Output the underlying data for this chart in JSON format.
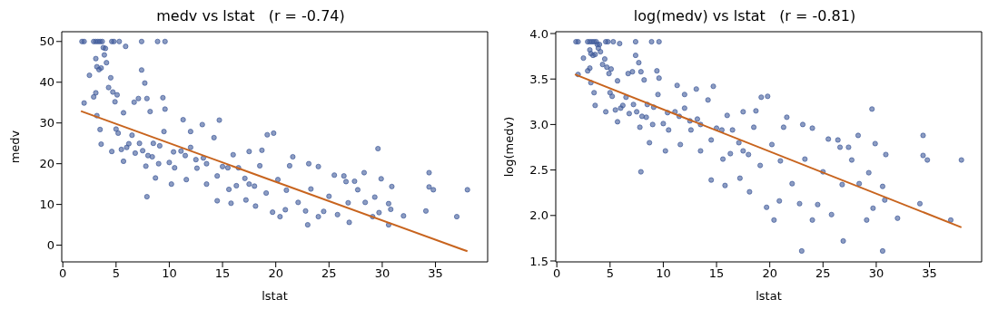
{
  "chart_data": [
    {
      "type": "scatter",
      "title": "medv vs lstat   (r = -0.74)",
      "xlabel": "lstat",
      "ylabel": "medv",
      "xlim": [
        -0.1,
        39.9
      ],
      "ylim": [
        -4.1,
        52.4
      ],
      "xticks": [
        0,
        5,
        10,
        15,
        20,
        25,
        30,
        35
      ],
      "yticks": [
        0,
        10,
        20,
        30,
        40,
        50
      ],
      "grid": false,
      "series": [
        {
          "marker": "circle",
          "color": "#3f5a9a",
          "x": [
            1.8,
            2,
            2.9,
            3.1,
            3.3,
            3.5,
            3.7,
            4.6,
            4.8,
            5.3,
            7.4,
            8.9,
            9.6,
            3.1,
            3.2,
            3.4,
            3.6,
            3.8,
            4,
            3.9,
            4.1,
            2.5,
            4.5,
            5.9,
            7.4,
            7.7,
            4.3,
            3.1,
            3.2,
            2.9,
            2,
            3.5,
            3.6,
            4.7,
            5.1,
            4.9,
            5.7,
            6.7,
            7.1,
            7.9,
            9.4,
            9.6,
            8.2,
            5,
            5.2,
            4.6,
            5.5,
            5.7,
            6.2,
            6.8,
            7.2,
            7.5,
            7.9,
            7.8,
            8.4,
            8.7,
            9.1,
            9.5,
            10.2,
            10,
            10.4,
            11.1,
            11.3,
            12,
            11.6,
            12.6,
            13.1,
            13.2,
            13.5,
            14.2,
            14.5,
            14.7,
            15,
            15.6,
            16,
            15.8,
            16.3,
            17.1,
            17.2,
            17.5,
            18.1,
            18.5,
            18.7,
            19.1,
            19.2,
            19.8,
            19.7,
            20.2,
            20.4,
            20.9,
            21,
            21.3,
            21.6,
            22.1,
            22.8,
            23,
            23.1,
            23.3,
            24,
            24,
            24.5,
            25,
            25.5,
            25.8,
            26.4,
            26.6,
            26.8,
            26.9,
            27.4,
            27.7,
            28.3,
            28.4,
            29.1,
            29.3,
            29.6,
            29.7,
            29.9,
            30.6,
            30.6,
            30.8,
            30.9,
            32,
            34.1,
            34.4,
            34.4,
            34.8,
            37,
            38,
            6,
            8,
            9,
            10.5,
            11.5,
            12.5,
            13.5,
            14.5,
            15.5,
            16.5,
            17.5,
            18,
            6.5,
            8.5,
            12
          ],
          "values": [
            50,
            50,
            50,
            50,
            50,
            50,
            50,
            50,
            50,
            50,
            50,
            50,
            50,
            45.8,
            43.8,
            43.1,
            43.5,
            48.5,
            48.3,
            46.7,
            44.8,
            41.7,
            41.1,
            48.8,
            43,
            39.8,
            38.7,
            37.4,
            31.8,
            36.4,
            34.9,
            28.4,
            24.8,
            37.6,
            36.9,
            35.2,
            32.5,
            35.1,
            36,
            36,
            36.2,
            33.4,
            32.8,
            28.5,
            27.5,
            23,
            23.5,
            20.6,
            24.9,
            22.6,
            25,
            23.2,
            11.9,
            19.4,
            21.7,
            16.5,
            24.4,
            27.9,
            15,
            20.3,
            22.9,
            23.1,
            30.8,
            27.9,
            16.1,
            18.9,
            29.6,
            21.4,
            15,
            26.4,
            10.9,
            30.7,
            19.3,
            13.7,
            22.2,
            10.3,
            14.6,
            16.4,
            11.1,
            23,
            9.6,
            19.5,
            23.3,
            12.8,
            27.1,
            27.5,
            8.1,
            16.1,
            7,
            8.7,
            13.5,
            19.5,
            21.7,
            10.5,
            8.4,
            5,
            20,
            13.8,
            19.3,
            7,
            8.3,
            12,
            17.2,
            7.5,
            17,
            15.6,
            10.4,
            5.6,
            15.7,
            13.6,
            17.8,
            10.5,
            7,
            11.8,
            23.7,
            8,
            16.3,
            10.2,
            5,
            8.8,
            14.4,
            7.2,
            8.4,
            17.8,
            14.3,
            13.6,
            7,
            13.6,
            24,
            22,
            20,
            19,
            22,
            21,
            20,
            17,
            19,
            19,
            15,
            14.5,
            27,
            25,
            24
          ]
        },
        {
          "type": "line",
          "color": "#c8641e",
          "x": [
            1.7,
            38
          ],
          "values": [
            32.9,
            -1.5
          ]
        }
      ]
    },
    {
      "type": "scatter",
      "title": "log(medv) vs lstat   (r = -0.81)",
      "xlabel": "lstat",
      "ylabel": "log(medv)",
      "xlim": [
        -0.1,
        39.9
      ],
      "ylim": [
        1.49,
        4.02
      ],
      "xticks": [
        0,
        5,
        10,
        15,
        20,
        25,
        30,
        35
      ],
      "yticks": [
        {
          "value": 1.5,
          "label": "1.5"
        },
        {
          "value": 2,
          "label": "2.0"
        },
        {
          "value": 2.5,
          "label": "2.5"
        },
        {
          "value": 3,
          "label": "3.0"
        },
        {
          "value": 3.5,
          "label": "3.5"
        },
        {
          "value": 4,
          "label": "4.0"
        }
      ],
      "grid": false,
      "series": [
        {
          "marker": "circle",
          "color": "#3f5a9a",
          "x": [
            1.8,
            2,
            2.9,
            3.1,
            3.3,
            3.5,
            3.7,
            4.6,
            4.8,
            5.3,
            7.4,
            8.9,
            9.6,
            3.1,
            3.2,
            3.4,
            3.6,
            3.8,
            4,
            3.9,
            4.1,
            2.5,
            4.5,
            5.9,
            7.4,
            7.7,
            4.3,
            3.1,
            3.2,
            2.9,
            2,
            3.5,
            3.6,
            4.7,
            5.1,
            4.9,
            5.7,
            6.7,
            7.1,
            7.9,
            9.4,
            9.6,
            8.2,
            5,
            5.2,
            4.6,
            5.5,
            5.7,
            6.2,
            6.8,
            7.2,
            7.5,
            7.9,
            7.8,
            8.4,
            8.7,
            9.1,
            9.5,
            10.2,
            10,
            10.4,
            11.1,
            11.3,
            12,
            11.6,
            12.6,
            13.1,
            13.2,
            13.5,
            14.2,
            14.5,
            14.7,
            15,
            15.6,
            16,
            15.8,
            16.3,
            17.1,
            17.2,
            17.5,
            18.1,
            18.5,
            18.7,
            19.1,
            19.2,
            19.8,
            19.7,
            20.2,
            20.4,
            20.9,
            21,
            21.3,
            21.6,
            22.1,
            22.8,
            23,
            23.1,
            23.3,
            24,
            24,
            24.5,
            25,
            25.5,
            25.8,
            26.4,
            26.6,
            26.8,
            26.9,
            27.4,
            27.7,
            28.3,
            28.4,
            29.1,
            29.3,
            29.6,
            29.7,
            29.9,
            30.6,
            30.6,
            30.8,
            30.9,
            32,
            34.1,
            34.4,
            34.4,
            34.8,
            37,
            38,
            6,
            8,
            9,
            10.5,
            11.5,
            12.5,
            13.5,
            14.5,
            15.5,
            16.5,
            17.5,
            18,
            6.5,
            8.5,
            12
          ],
          "values": [
            3.91,
            3.91,
            3.91,
            3.91,
            3.91,
            3.91,
            3.91,
            3.91,
            3.91,
            3.91,
            3.91,
            3.91,
            3.91,
            3.82,
            3.78,
            3.76,
            3.77,
            3.88,
            3.88,
            3.84,
            3.8,
            3.73,
            3.72,
            3.89,
            3.76,
            3.68,
            3.66,
            3.62,
            3.46,
            3.59,
            3.55,
            3.35,
            3.21,
            3.63,
            3.61,
            3.56,
            3.48,
            3.56,
            3.58,
            3.58,
            3.59,
            3.51,
            3.49,
            3.35,
            3.31,
            3.14,
            3.16,
            3.03,
            3.21,
            3.12,
            3.22,
            3.14,
            2.48,
            2.97,
            3.08,
            2.8,
            3.19,
            3.33,
            2.71,
            3.01,
            3.13,
            3.14,
            3.43,
            3.33,
            2.78,
            2.94,
            3.39,
            3.06,
            2.71,
            3.27,
            2.39,
            3.42,
            2.96,
            2.62,
            3.1,
            2.33,
            2.68,
            2.8,
            2.41,
            3.14,
            2.26,
            2.97,
            3.15,
            2.55,
            3.3,
            3.31,
            2.09,
            2.78,
            1.95,
            2.16,
            2.6,
            2.97,
            3.08,
            2.35,
            2.13,
            1.61,
            3,
            2.62,
            2.96,
            1.95,
            2.12,
            2.48,
            2.84,
            2.01,
            2.83,
            2.75,
            2.34,
            1.72,
            2.75,
            2.61,
            2.88,
            2.35,
            1.95,
            2.47,
            3.17,
            2.08,
            2.79,
            2.32,
            1.61,
            2.17,
            2.67,
            1.97,
            2.13,
            2.88,
            2.66,
            2.61,
            1.95,
            2.61,
            3.18,
            3.09,
            3,
            2.94,
            3.09,
            3.04,
            3,
            2.83,
            2.94,
            2.94,
            2.71,
            2.67,
            3.3,
            3.22,
            3.18
          ]
        },
        {
          "type": "line",
          "color": "#c8641e",
          "x": [
            1.7,
            38
          ],
          "values": [
            3.55,
            1.87
          ]
        }
      ]
    }
  ]
}
